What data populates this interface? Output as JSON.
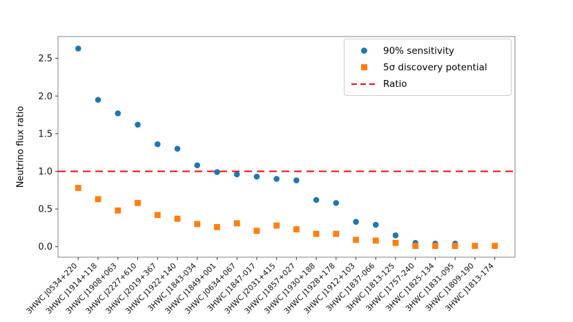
{
  "chart_data": {
    "type": "scatter",
    "title": "",
    "xlabel": "",
    "ylabel": "Neutrino flux ratio",
    "ylim": [
      -0.14,
      2.79
    ],
    "yticks": [
      0.0,
      0.5,
      1.0,
      1.5,
      2.0,
      2.5
    ],
    "ytick_labels": [
      "0.0",
      "0.5",
      "1.0",
      "1.5",
      "2.0",
      "2.5"
    ],
    "grid": false,
    "legend_position": "upper right",
    "categories": [
      "3HWC J0534+220",
      "3HWC J1914+118",
      "3HWC J1908+063",
      "3HWC J2227+610",
      "3HWC J2019+367",
      "3HWC J1922+140",
      "3HWC J1843-034",
      "3HWC J1849+001",
      "3HWC J0634+067",
      "3HWC J1847-017",
      "3HWC J2031+415",
      "3HWC J1857+027",
      "3HWC J1930+188",
      "3HWC J1928+178",
      "3HWC J1912+103",
      "3HWC J1837-066",
      "3HWC J1813-125",
      "3HWC J1757-240",
      "3HWC J1825-134",
      "3HWC J1831-095",
      "3HWC J1809-190",
      "3HWC J1813-174"
    ],
    "series": [
      {
        "name": "90% sensitivity",
        "marker": "circle",
        "color": "#1f77b4",
        "values": [
          2.63,
          1.95,
          1.77,
          1.62,
          1.36,
          1.3,
          1.08,
          0.99,
          0.96,
          0.93,
          0.9,
          0.88,
          0.62,
          0.58,
          0.33,
          0.29,
          0.15,
          0.05,
          0.04,
          0.04,
          0.01,
          0.01
        ]
      },
      {
        "name": "5σ discovery potential",
        "marker": "square",
        "color": "#ff7f0e",
        "values": [
          0.78,
          0.63,
          0.48,
          0.58,
          0.42,
          0.37,
          0.3,
          0.26,
          0.31,
          0.21,
          0.28,
          0.23,
          0.17,
          0.17,
          0.09,
          0.08,
          0.05,
          0.01,
          0.01,
          0.01,
          0.01,
          0.01
        ]
      }
    ],
    "ratio_line": {
      "label": "Ratio",
      "value": 1.0,
      "color": "#ff0000",
      "style": "dashed"
    }
  }
}
